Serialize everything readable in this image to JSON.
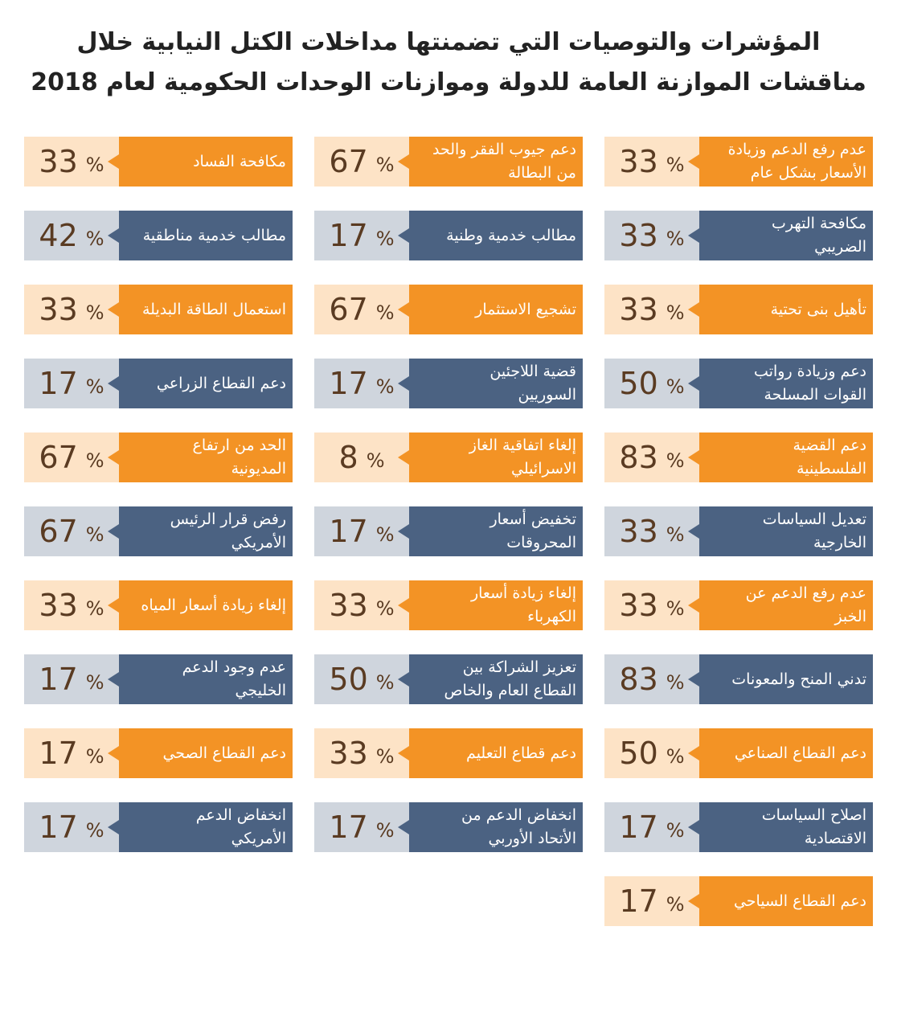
{
  "header": {
    "title_lines": [
      "المؤشرات والتوصيات التي تضمنتها مداخلات الكتل النيابية خلال",
      "مناقشات الموازنة العامة للدولة وموازنات الوحدات الحكومية لعام 2018"
    ]
  },
  "unit": "%",
  "rows": [
    [
      {
        "label": "عدم رفع الدعم وزيادة الأسعار بشكل عام",
        "value": 33
      },
      {
        "label": "دعم جيوب الفقر والحد من البطالة",
        "value": 67
      },
      {
        "label": "مكافحة الفساد",
        "value": 33
      }
    ],
    [
      {
        "label": "مكافحة التهرب الضريبي",
        "value": 33
      },
      {
        "label": "مطالب خدمية وطنية",
        "value": 17
      },
      {
        "label": "مطالب خدمية مناطقية",
        "value": 42
      }
    ],
    [
      {
        "label": "تأهيل بنى تحتية",
        "value": 33
      },
      {
        "label": "تشجيع الاستثمار",
        "value": 67
      },
      {
        "label": "استعمال الطاقة البديلة",
        "value": 33
      }
    ],
    [
      {
        "label": "دعم وزيادة رواتب القوات المسلحة",
        "value": 50
      },
      {
        "label": "قضية اللاجئين السوريين",
        "value": 17
      },
      {
        "label": "دعم القطاع الزراعي",
        "value": 17
      }
    ],
    [
      {
        "label": "دعم القضية الفلسطينية",
        "value": 83
      },
      {
        "label": "إلغاء اتفاقية الغاز الاسرائيلي",
        "value": 8
      },
      {
        "label": "الحد من ارتفاع المديونية",
        "value": 67
      }
    ],
    [
      {
        "label": "تعديل السياسات الخارجية",
        "value": 33
      },
      {
        "label": "تخفيض أسعار المحروقات",
        "value": 17
      },
      {
        "label": "رفض قرار الرئيس الأمريكي",
        "value": 67
      }
    ],
    [
      {
        "label": "عدم رفع الدعم عن الخبز",
        "value": 33
      },
      {
        "label": "إلغاء زيادة أسعار الكهرباء",
        "value": 33
      },
      {
        "label": "إلغاء زيادة أسعار المياه",
        "value": 33
      }
    ],
    [
      {
        "label": "تدني المنح والمعونات",
        "value": 83
      },
      {
        "label": "تعزيز الشراكة بين القطاع العام والخاص",
        "value": 50
      },
      {
        "label": "عدم وجود الدعم الخليجي",
        "value": 17
      }
    ],
    [
      {
        "label": "دعم القطاع الصناعي",
        "value": 50
      },
      {
        "label": "دعم قطاع التعليم",
        "value": 33
      },
      {
        "label": "دعم القطاع الصحي",
        "value": 17
      }
    ],
    [
      {
        "label": "اصلاح السياسات الاقتصادية",
        "value": 17
      },
      {
        "label": "انخفاض الدعم من الأتحاد الأوربي",
        "value": 17
      },
      {
        "label": "انخفاض الدعم الأمريكي",
        "value": 17
      }
    ],
    [
      {
        "label": "دعم القطاع السياحي",
        "value": 17
      }
    ]
  ]
}
